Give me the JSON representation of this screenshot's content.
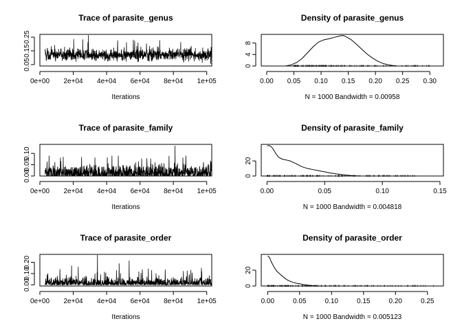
{
  "chart_data": [
    {
      "type": "line",
      "title": "Trace of parasite_genus",
      "xlabel": "Iterations",
      "xlim": [
        0,
        103000
      ],
      "ylim": [
        0.04,
        0.27
      ],
      "x_ticks": [
        "0e+00",
        "2e+04",
        "4e+04",
        "6e+04",
        "8e+04",
        "1e+05"
      ],
      "x_tick_values": [
        0,
        20000,
        40000,
        60000,
        80000,
        100000
      ],
      "y_ticks": [
        "0.05",
        "0.15",
        "0.25"
      ],
      "y_tick_values": [
        0.05,
        0.15,
        0.25
      ],
      "trace": {
        "n": 1000,
        "x_start": 3100,
        "x_step": 100,
        "center": 0.12,
        "spread": 0.022,
        "min": 0.045,
        "max": 0.235,
        "spikes": [
          [
            29100,
            0.265
          ]
        ]
      }
    },
    {
      "type": "line",
      "title": "Density of parasite_genus",
      "xlabel": "N = 1000   Bandwidth = 0.00958",
      "xlim": [
        -0.01,
        0.325
      ],
      "ylim": [
        0,
        11
      ],
      "x_ticks": [
        "0.00",
        "0.05",
        "0.10",
        "0.15",
        "0.20",
        "0.25",
        "0.30"
      ],
      "x_tick_values": [
        0,
        0.05,
        0.1,
        0.15,
        0.2,
        0.25,
        0.3
      ],
      "y_ticks": [
        "0",
        "4",
        "8"
      ],
      "y_tick_values": [
        0,
        4,
        8
      ],
      "x": [
        0.035,
        0.045,
        0.055,
        0.065,
        0.075,
        0.085,
        0.095,
        0.105,
        0.115,
        0.125,
        0.135,
        0.14,
        0.145,
        0.155,
        0.165,
        0.175,
        0.185,
        0.195,
        0.205,
        0.215,
        0.225,
        0.235,
        0.24
      ],
      "y": [
        0.0,
        0.4,
        1.2,
        2.6,
        4.6,
        6.6,
        8.3,
        9.1,
        9.5,
        10.0,
        10.5,
        10.6,
        10.3,
        9.2,
        7.6,
        5.8,
        4.1,
        2.7,
        1.6,
        0.8,
        0.35,
        0.1,
        0.0
      ],
      "rug": {
        "min": 0.05,
        "max": 0.3,
        "n": 120
      }
    },
    {
      "type": "line",
      "title": "Trace of parasite_family",
      "xlabel": "Iterations",
      "xlim": [
        0,
        103000
      ],
      "ylim": [
        0,
        0.14
      ],
      "x_ticks": [
        "0e+00",
        "2e+04",
        "4e+04",
        "6e+04",
        "8e+04",
        "1e+05"
      ],
      "x_tick_values": [
        0,
        20000,
        40000,
        60000,
        80000,
        100000
      ],
      "y_ticks": [
        "0.00",
        "0.05",
        "0.10"
      ],
      "y_tick_values": [
        0,
        0.05,
        0.1
      ],
      "trace": {
        "n": 1000,
        "x_start": 3100,
        "x_step": 100,
        "center": 0.012,
        "spread": 0.018,
        "min": 0.0,
        "max": 0.09,
        "spikes": [
          [
            81000,
            0.134
          ],
          [
            47000,
            0.09
          ],
          [
            14000,
            0.085
          ]
        ]
      }
    },
    {
      "type": "line",
      "title": "Density of parasite_family",
      "xlabel": "N = 1000   Bandwidth = 0.004818",
      "xlim": [
        -0.005,
        0.153
      ],
      "ylim": [
        0,
        42
      ],
      "x_ticks": [
        "0.00",
        "0.05",
        "0.10",
        "0.15"
      ],
      "x_tick_values": [
        0,
        0.05,
        0.1,
        0.15
      ],
      "y_ticks": [
        "0",
        "20"
      ],
      "y_tick_values": [
        0,
        20
      ],
      "x": [
        0.0,
        0.002,
        0.004,
        0.006,
        0.008,
        0.01,
        0.013,
        0.016,
        0.02,
        0.025,
        0.03,
        0.035,
        0.04,
        0.045,
        0.05,
        0.055,
        0.06,
        0.065,
        0.07,
        0.075,
        0.08
      ],
      "y": [
        40,
        40.5,
        38.5,
        34,
        29,
        25,
        22.5,
        21.5,
        20,
        16.5,
        12.5,
        10,
        8.5,
        7,
        5.5,
        4,
        2.8,
        1.8,
        1.0,
        0.4,
        0.1
      ],
      "rug": {
        "min": 0.0,
        "max": 0.135,
        "n": 120
      }
    },
    {
      "type": "line",
      "title": "Trace of parasite_order",
      "xlabel": "Iterations",
      "xlim": [
        0,
        103000
      ],
      "ylim": [
        -0.01,
        0.27
      ],
      "x_ticks": [
        "0e+00",
        "2e+04",
        "4e+04",
        "6e+04",
        "8e+04",
        "1e+05"
      ],
      "x_tick_values": [
        0,
        20000,
        40000,
        60000,
        80000,
        100000
      ],
      "y_ticks": [
        "0.00",
        "0.10",
        "0.20"
      ],
      "y_tick_values": [
        0,
        0.1,
        0.2
      ],
      "trace": {
        "n": 1000,
        "x_start": 3100,
        "x_step": 100,
        "center": 0.015,
        "spread": 0.025,
        "min": 0.0,
        "max": 0.15,
        "spikes": [
          [
            34500,
            0.265
          ],
          [
            53500,
            0.215
          ],
          [
            47500,
            0.19
          ],
          [
            19000,
            0.17
          ],
          [
            23000,
            0.16
          ],
          [
            12000,
            0.14
          ],
          [
            67000,
            0.13
          ],
          [
            97000,
            0.12
          ]
        ]
      }
    },
    {
      "type": "line",
      "title": "Density of parasite_order",
      "xlabel": "N = 1000   Bandwidth = 0.005123",
      "xlim": [
        -0.01,
        0.275
      ],
      "ylim": [
        0,
        40
      ],
      "x_ticks": [
        "0.00",
        "0.05",
        "0.10",
        "0.15",
        "0.20",
        "0.25"
      ],
      "x_tick_values": [
        0,
        0.05,
        0.1,
        0.15,
        0.2,
        0.25
      ],
      "y_ticks": [
        "0",
        "20"
      ],
      "y_tick_values": [
        0,
        20
      ],
      "x": [
        0.0,
        0.003,
        0.006,
        0.01,
        0.014,
        0.018,
        0.022,
        0.026,
        0.03,
        0.035,
        0.04,
        0.045,
        0.05,
        0.055,
        0.06,
        0.065,
        0.07,
        0.075,
        0.08
      ],
      "y": [
        38,
        36,
        30,
        24,
        19,
        16,
        13,
        10.5,
        8,
        6,
        4.5,
        3.5,
        2.8,
        2,
        1.4,
        0.9,
        0.5,
        0.2,
        0.05
      ],
      "rug": {
        "min": 0.0,
        "max": 0.265,
        "n": 120
      }
    }
  ]
}
